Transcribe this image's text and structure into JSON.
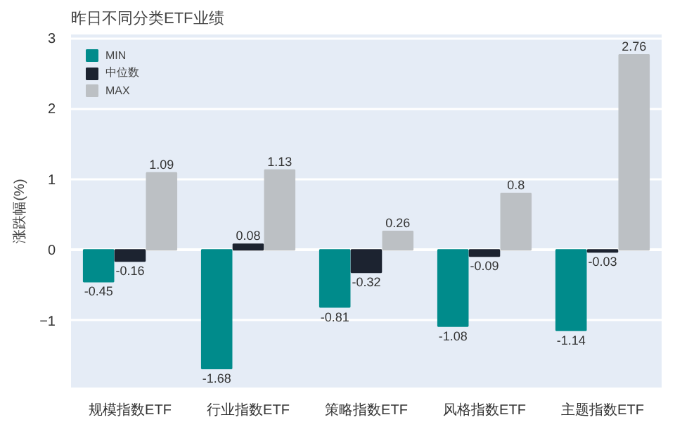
{
  "chart_data": {
    "type": "bar",
    "title": "昨日不同分类ETF业绩",
    "ylabel": "涨跌幅(%)",
    "categories": [
      "规模指数ETF",
      "行业指数ETF",
      "策略指数ETF",
      "风格指数ETF",
      "主题指数ETF"
    ],
    "series": [
      {
        "name": "MIN",
        "color": "#008b8b",
        "values": [
          -0.45,
          -1.68,
          -0.81,
          -1.08,
          -1.14
        ]
      },
      {
        "name": "中位数",
        "color": "#1c2330",
        "values": [
          -0.16,
          0.08,
          -0.32,
          -0.09,
          -0.03
        ]
      },
      {
        "name": "MAX",
        "color": "#bcc0c4",
        "values": [
          1.09,
          1.13,
          0.26,
          0.8,
          2.76
        ]
      }
    ],
    "ylim": [
      -1.95,
      3.05
    ],
    "yticks": [
      -1,
      0,
      1,
      2,
      3
    ],
    "grid": "y",
    "legend": "top left",
    "data_labels": true
  }
}
